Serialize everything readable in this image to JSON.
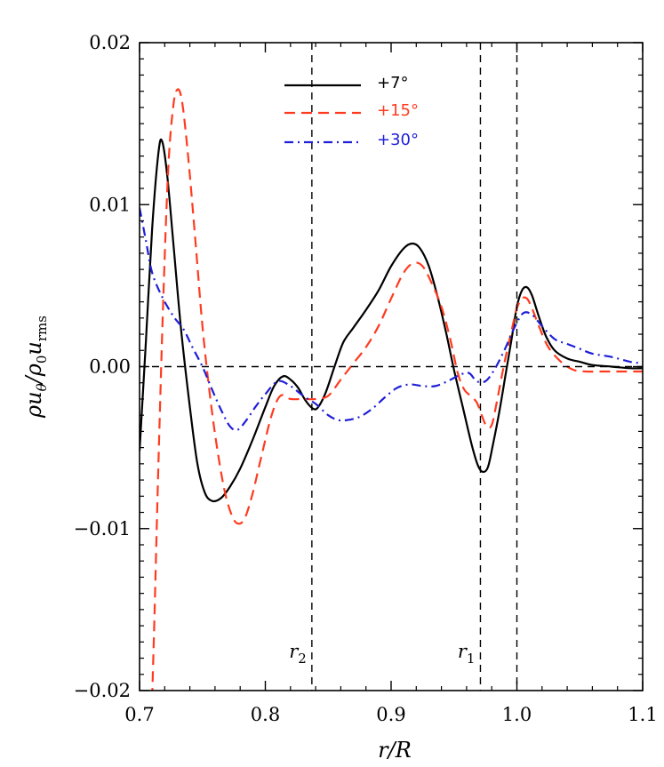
{
  "chart_data": {
    "type": "line",
    "xlabel": "r/R",
    "ylabel": "ρu_θ/ρ_0u_rms",
    "xlim": [
      0.7,
      1.1
    ],
    "ylim": [
      -0.02,
      0.02
    ],
    "x_ticks": [
      0.7,
      0.8,
      0.9,
      1.0,
      1.1
    ],
    "x_tick_labels": [
      "0.7",
      "0.8",
      "0.9",
      "1.0",
      "1.1"
    ],
    "y_ticks": [
      -0.02,
      -0.01,
      0.0,
      0.01,
      0.02
    ],
    "y_tick_labels": [
      "−0.02",
      "−0.01",
      "0.00",
      "0.01",
      "0.02"
    ],
    "grid": false,
    "legend_position": "top-center",
    "reference_lines": {
      "horizontal": [
        0.0
      ],
      "vertical": [
        {
          "x": 0.837,
          "label_main": "r",
          "label_sub": "2"
        },
        {
          "x": 0.971,
          "label_main": "r",
          "label_sub": "1"
        },
        {
          "x": 1.0,
          "label_main": "",
          "label_sub": ""
        }
      ]
    },
    "series": [
      {
        "name": "+7°",
        "color": "#000000",
        "style": "solid",
        "x": [
          0.7,
          0.705,
          0.71,
          0.715,
          0.718,
          0.722,
          0.727,
          0.733,
          0.74,
          0.746,
          0.752,
          0.758,
          0.765,
          0.772,
          0.78,
          0.79,
          0.8,
          0.807,
          0.814,
          0.82,
          0.826,
          0.832,
          0.838,
          0.842,
          0.848,
          0.855,
          0.862,
          0.87,
          0.88,
          0.89,
          0.9,
          0.91,
          0.917,
          0.923,
          0.93,
          0.937,
          0.944,
          0.95,
          0.957,
          0.964,
          0.969,
          0.973,
          0.977,
          0.981,
          0.986,
          0.991,
          0.996,
          1.0,
          1.004,
          1.008,
          1.012,
          1.017,
          1.023,
          1.03,
          1.04,
          1.05,
          1.06,
          1.075,
          1.09,
          1.1
        ],
        "y": [
          -0.0052,
          0.0015,
          0.0085,
          0.0132,
          0.0139,
          0.0118,
          0.0075,
          0.0023,
          -0.0025,
          -0.006,
          -0.0078,
          -0.0083,
          -0.0081,
          -0.0074,
          -0.0063,
          -0.0045,
          -0.0025,
          -0.0012,
          -0.0006,
          -0.0008,
          -0.0013,
          -0.0021,
          -0.0026,
          -0.0025,
          -0.0016,
          0.0,
          0.0015,
          0.0024,
          0.0035,
          0.0047,
          0.0062,
          0.0073,
          0.0076,
          0.0073,
          0.0062,
          0.0043,
          0.002,
          -0.0002,
          -0.0025,
          -0.0048,
          -0.0061,
          -0.0065,
          -0.0062,
          -0.0048,
          -0.0028,
          -0.0005,
          0.0018,
          0.0037,
          0.0047,
          0.0049,
          0.0044,
          0.0032,
          0.0019,
          0.001,
          0.0005,
          0.0003,
          0.0001,
          0.0,
          -0.0001,
          -0.0001
        ]
      },
      {
        "name": "+15°",
        "color": "#ff3b1f",
        "style": "dashed",
        "x": [
          0.71,
          0.712,
          0.715,
          0.719,
          0.723,
          0.727,
          0.73,
          0.733,
          0.736,
          0.74,
          0.745,
          0.75,
          0.756,
          0.762,
          0.768,
          0.774,
          0.779,
          0.784,
          0.79,
          0.797,
          0.805,
          0.812,
          0.82,
          0.83,
          0.84,
          0.85,
          0.86,
          0.87,
          0.88,
          0.89,
          0.9,
          0.91,
          0.918,
          0.925,
          0.932,
          0.94,
          0.947,
          0.953,
          0.958,
          0.963,
          0.968,
          0.972,
          0.976,
          0.98,
          0.984,
          0.99,
          0.996,
          1.0,
          1.004,
          1.008,
          1.012,
          1.018,
          1.025,
          1.035,
          1.045,
          1.055,
          1.07,
          1.085,
          1.1
        ],
        "y": [
          -0.0205,
          -0.015,
          -0.006,
          0.0045,
          0.0125,
          0.0162,
          0.0171,
          0.0167,
          0.015,
          0.0118,
          0.0072,
          0.0025,
          -0.0018,
          -0.0052,
          -0.0078,
          -0.0093,
          -0.0097,
          -0.0093,
          -0.0078,
          -0.0055,
          -0.003,
          -0.0018,
          -0.002,
          -0.002,
          -0.002,
          -0.0018,
          -0.0008,
          0.0002,
          0.0012,
          0.0025,
          0.0042,
          0.0058,
          0.0064,
          0.0062,
          0.0052,
          0.0037,
          0.0017,
          -0.0004,
          -0.0014,
          -0.0018,
          -0.0022,
          -0.003,
          -0.0037,
          -0.0036,
          -0.0022,
          0.0002,
          0.0023,
          0.0036,
          0.0042,
          0.0042,
          0.0036,
          0.0024,
          0.0012,
          0.0003,
          -0.0002,
          -0.0003,
          -0.0003,
          -0.0003,
          -0.0003
        ]
      },
      {
        "name": "+30°",
        "color": "#1f1fd8",
        "style": "dash-dot",
        "x": [
          0.7,
          0.705,
          0.71,
          0.718,
          0.727,
          0.735,
          0.742,
          0.75,
          0.757,
          0.765,
          0.772,
          0.778,
          0.785,
          0.792,
          0.8,
          0.81,
          0.82,
          0.83,
          0.84,
          0.85,
          0.858,
          0.865,
          0.875,
          0.885,
          0.895,
          0.905,
          0.915,
          0.925,
          0.935,
          0.945,
          0.955,
          0.962,
          0.968,
          0.975,
          0.982,
          0.99,
          0.998,
          1.005,
          1.012,
          1.02,
          1.03,
          1.04,
          1.05,
          1.06,
          1.075,
          1.09,
          1.1
        ],
        "y": [
          0.0098,
          0.0078,
          0.0058,
          0.0043,
          0.0031,
          0.0023,
          0.0012,
          0.0,
          -0.0013,
          -0.0027,
          -0.0037,
          -0.0039,
          -0.0033,
          -0.0025,
          -0.0017,
          -0.0009,
          -0.0012,
          -0.0018,
          -0.0023,
          -0.003,
          -0.0033,
          -0.0033,
          -0.0031,
          -0.0026,
          -0.0019,
          -0.0013,
          -0.0011,
          -0.0012,
          -0.0012,
          -0.0009,
          -0.0005,
          -0.0004,
          -0.0009,
          -0.0009,
          -0.0002,
          0.001,
          0.0024,
          0.0033,
          0.0032,
          0.0025,
          0.0017,
          0.0014,
          0.0011,
          0.0008,
          0.0006,
          0.0003,
          0.0002
        ]
      }
    ]
  }
}
